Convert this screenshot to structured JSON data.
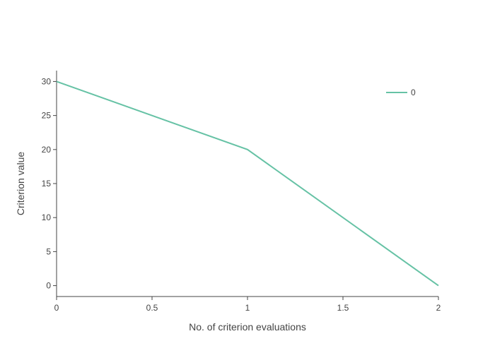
{
  "chart_data": {
    "type": "line",
    "xlabel": "No. of criterion evaluations",
    "ylabel": "Criterion value",
    "xlim": [
      0,
      2
    ],
    "ylim": [
      -1.6,
      31.6
    ],
    "x_ticks": [
      0,
      0.5,
      1,
      1.5,
      2
    ],
    "y_ticks": [
      0,
      5,
      10,
      15,
      20,
      25,
      30
    ],
    "grid": false,
    "legend_position": "top-right",
    "series": [
      {
        "name": "0",
        "color": "#66c2a5",
        "x": [
          0,
          1,
          2
        ],
        "y": [
          30,
          20,
          0
        ]
      }
    ]
  }
}
